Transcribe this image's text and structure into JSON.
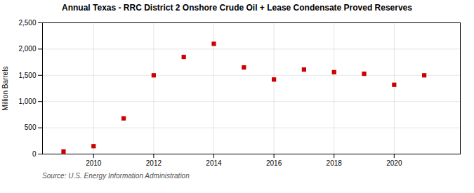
{
  "chart_data": {
    "type": "scatter",
    "title": "Annual Texas - RRC District 2 Onshore Crude Oil + Lease Condensate Proved Reserves",
    "ylabel": "Million Barrels",
    "annotations": [
      "Source: U.S. Energy Information Administration"
    ],
    "x": [
      2009,
      2010,
      2011,
      2012,
      2013,
      2014,
      2015,
      2016,
      2017,
      2018,
      2019,
      2020,
      2021
    ],
    "values": [
      50,
      150,
      680,
      1500,
      1850,
      2100,
      1650,
      1420,
      1610,
      1560,
      1530,
      1320,
      1500
    ],
    "color": "#cc0000",
    "marker": "square",
    "xlim": [
      2008.3,
      2022.2
    ],
    "xticks": [
      2010,
      2012,
      2014,
      2016,
      2018,
      2020
    ],
    "ylim": [
      0,
      2500
    ],
    "yticks": [
      0,
      500,
      {
        "value": 1000,
        "label": "1,000"
      },
      {
        "value": 1500,
        "label": "1,500"
      },
      {
        "value": 2000,
        "label": "2,000"
      },
      {
        "value": 2500,
        "label": "2,500"
      }
    ],
    "grid": true
  }
}
